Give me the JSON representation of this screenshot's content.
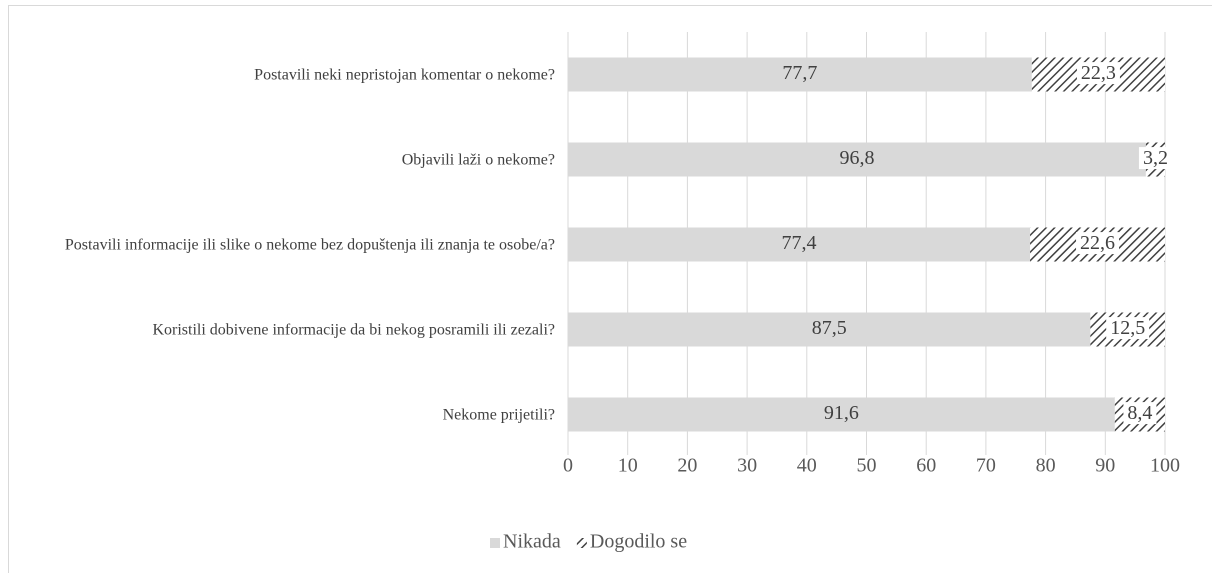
{
  "chart_data": {
    "type": "stacked_bar_horizontal",
    "categories": [
      "Postavili neki nepristojan komentar o nekome?",
      "Objavili laži o nekome?",
      "Postavili informacije ili slike o nekome bez dopuštenja ili znanja te osobe/a?",
      "Koristili dobivene informacije da bi nekog posramili ili zezali?",
      "Nekome prijetili?"
    ],
    "series": [
      {
        "name": "Nikada",
        "color": "#d9d9d9",
        "values": [
          77.7,
          96.8,
          77.4,
          87.5,
          91.6
        ],
        "value_labels": [
          "77,7",
          "96,8",
          "77,4",
          "87,5",
          "91,6"
        ]
      },
      {
        "name": "Dogodilo se",
        "color": "#404040",
        "pattern": "diagonal-hatch",
        "values": [
          22.3,
          3.2,
          22.6,
          12.5,
          8.4
        ],
        "value_labels": [
          "22,3",
          "3,2",
          "22,6",
          "12,5",
          "8,4"
        ]
      }
    ],
    "xlim": [
      0,
      100
    ],
    "xticks": [
      0,
      10,
      20,
      30,
      40,
      50,
      60,
      70,
      80,
      90,
      100
    ],
    "grid": true,
    "legend": "bottom"
  }
}
